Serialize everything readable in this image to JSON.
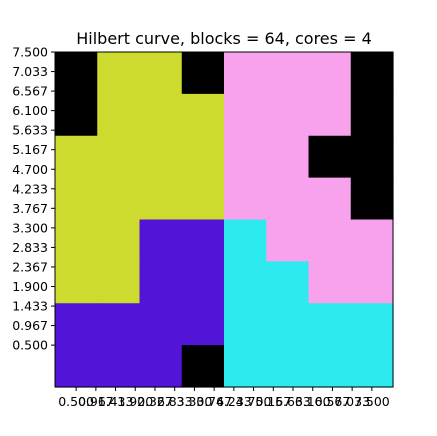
{
  "chart_data": {
    "type": "heatmap",
    "title": "Hilbert curve, blocks = 64, cores = 4",
    "xlabel": "",
    "ylabel": "",
    "grid": false,
    "xlim": [
      0,
      8
    ],
    "ylim": [
      -0.5,
      7.5
    ],
    "xticks": [
      0.5,
      0.967,
      1.433,
      1.9,
      2.367,
      2.833,
      3.3,
      3.767,
      4.233,
      4.7,
      5.167,
      5.633,
      6.1,
      6.567,
      7.033,
      7.5
    ],
    "xtick_labels": [
      "0.500",
      "0.967",
      "1.433",
      "1.900",
      "2.367",
      "2.833",
      "3.300",
      "3.767",
      "4.233",
      "4.700",
      "5.167",
      "5.633",
      "6.100",
      "6.567",
      "7.033",
      "7.500"
    ],
    "yticks": [
      0.5,
      0.967,
      1.433,
      1.9,
      2.367,
      2.833,
      3.3,
      3.767,
      4.233,
      4.7,
      5.167,
      5.633,
      6.1,
      6.567,
      7.033,
      7.5
    ],
    "ytick_labels": [
      "0.500",
      "0.967",
      "1.433",
      "1.900",
      "2.367",
      "2.833",
      "3.300",
      "3.767",
      "4.233",
      "4.700",
      "5.167",
      "5.633",
      "6.100",
      "6.567",
      "7.033",
      "7.500"
    ],
    "colors": {
      "0": "#000000",
      "1": "#cddb2e",
      "2": "#5214d6",
      "3": "#2ceaf0",
      "4": "#f8a2ee"
    },
    "grid_rows_top_to_bottom": [
      [
        0,
        1,
        1,
        0,
        4,
        4,
        4,
        0
      ],
      [
        0,
        1,
        1,
        1,
        4,
        4,
        4,
        0
      ],
      [
        1,
        1,
        1,
        1,
        4,
        4,
        0,
        0
      ],
      [
        1,
        1,
        1,
        1,
        4,
        4,
        4,
        0
      ],
      [
        1,
        1,
        2,
        2,
        3,
        4,
        4,
        4
      ],
      [
        1,
        1,
        2,
        2,
        3,
        3,
        4,
        4
      ],
      [
        2,
        2,
        2,
        2,
        3,
        3,
        3,
        3
      ],
      [
        2,
        2,
        2,
        0,
        3,
        3,
        3,
        3
      ]
    ]
  }
}
